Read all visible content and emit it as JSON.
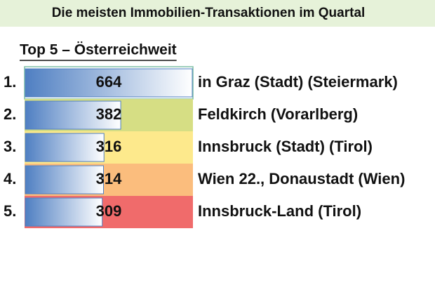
{
  "chart_data": {
    "type": "bar",
    "title": "Die meisten Immobilien-Transaktionen im Quartal",
    "subtitle": "Top 5 – Österreichweit",
    "ranks": [
      "1.",
      "2.",
      "3.",
      "4.",
      "5."
    ],
    "categories": [
      "in Graz (Stadt) (Steiermark)",
      "Feldkirch (Vorarlberg)",
      "Innsbruck (Stadt) (Tirol)",
      "Wien 22., Donaustadt (Wien)",
      "Innsbruck-Land (Tirol)"
    ],
    "values": [
      664,
      382,
      316,
      314,
      309
    ],
    "xlim": [
      0,
      664
    ],
    "color": "#4f7fc2",
    "row_colors": [
      "#ffffff",
      "#d6de84",
      "#fde98c",
      "#fbbd7d",
      "#f06b6b"
    ]
  }
}
